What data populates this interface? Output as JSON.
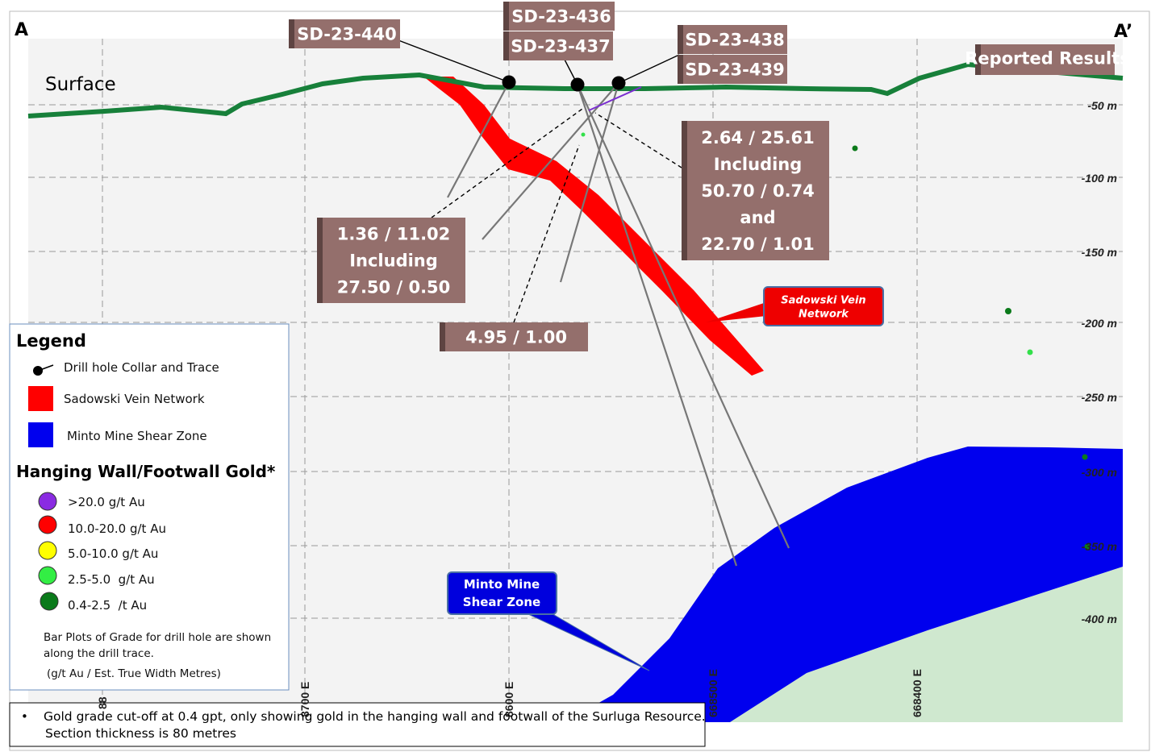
{
  "corners": [
    "A",
    "A’"
  ],
  "surface": "Surface",
  "holes": [
    "SD-23-440",
    "SD-23-436",
    "SD-23-437",
    "SD-23-438",
    "SD-23-439"
  ],
  "reported": "Reported Results",
  "depths": [
    "-50 m",
    "-100 m",
    "-150 m",
    "-200 m",
    "-250 m",
    "-300 m",
    "-350 m",
    "-400 m"
  ],
  "eastings": [
    "88",
    "8700 E",
    "8600 E",
    "668500 E",
    "668400 E"
  ],
  "results": [
    [
      "1.36 / 11.02",
      "Including",
      "27.50 / 0.50"
    ],
    [
      "4.95 / 1.00"
    ],
    [
      "2.64 / 25.61",
      "Including",
      "50.70 / 0.74",
      "and",
      "22.70 / 1.01"
    ]
  ],
  "callouts": [
    [
      "Sadowski Vein",
      "Network"
    ],
    [
      "Minto Mine",
      "Shear Zone"
    ]
  ],
  "legend": {
    "title": "Legend",
    "items": [
      "Drill hole Collar and Trace",
      "Sadowski Vein Network",
      "Minto Mine Shear Zone"
    ],
    "gold_title": "Hanging Wall/Footwall Gold*",
    "gold_items": [
      ">20.0 g/t Au",
      "10.0-20.0 g/t Au",
      "5.0-10.0 g/t Au",
      "2.5-5.0  g/t Au",
      "0.4-2.5  /t Au"
    ],
    "notes": [
      "Bar Plots of Grade for drill hole are shown",
      "along the drill trace.",
      "(g/t Au / Est. True Width Metres)"
    ]
  },
  "footnote": {
    "bullet": "•",
    "lines": [
      "Gold grade cut-off at 0.4 gpt, only showing gold in the hanging wall and footwall of the Surluga Resource.",
      "Section thickness is 80 metres"
    ]
  }
}
